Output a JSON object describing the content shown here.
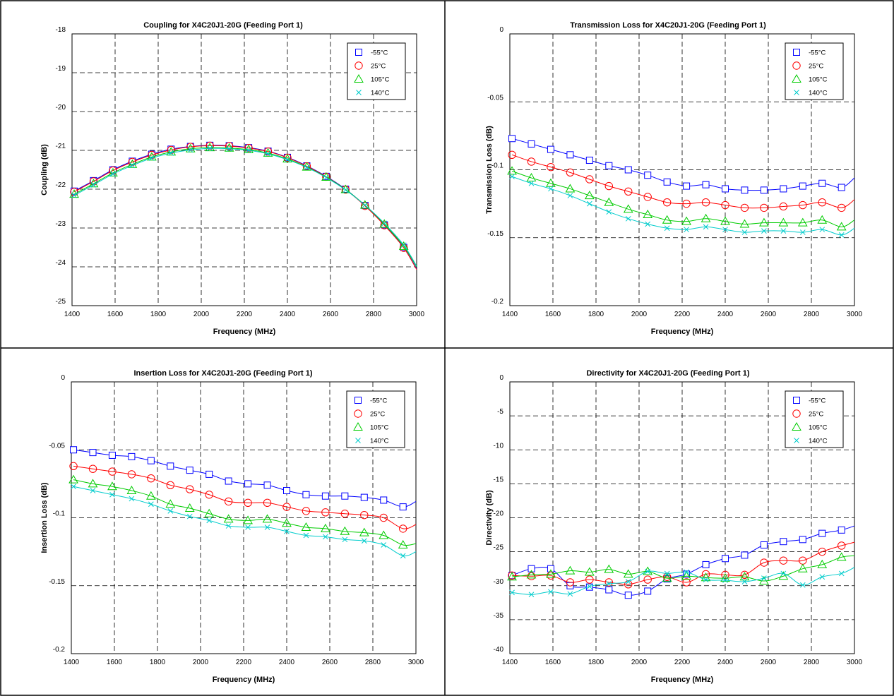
{
  "chart_data": [
    {
      "type": "line",
      "title": "Coupling for X4C20J1-20G (Feeding Port 1)",
      "xlabel": "Frequency (MHz)",
      "ylabel": "Coupling (dB)",
      "xlim": [
        1400,
        3000
      ],
      "ylim": [
        -25,
        -18
      ],
      "xticks": [
        1400,
        1600,
        1800,
        2000,
        2200,
        2400,
        2600,
        2800,
        3000
      ],
      "yticks": [
        -25,
        -24,
        -23,
        -22,
        -21,
        -20,
        -19,
        -18
      ],
      "grid": true,
      "legend_position": "top-right",
      "series": [
        {
          "name": "-55°C",
          "color": "#0000ff",
          "marker": "square",
          "x": [
            1410,
            1500,
            1590,
            1680,
            1770,
            1860,
            1950,
            2040,
            2130,
            2220,
            2310,
            2400,
            2490,
            2580,
            2670,
            2760,
            2850,
            2940,
            3000
          ],
          "y": [
            -22.05,
            -21.78,
            -21.5,
            -21.28,
            -21.1,
            -20.97,
            -20.9,
            -20.87,
            -20.88,
            -20.93,
            -21.02,
            -21.18,
            -21.4,
            -21.67,
            -22.0,
            -22.42,
            -22.92,
            -23.5,
            -24.05
          ]
        },
        {
          "name": "25°C",
          "color": "#ff0000",
          "marker": "circle",
          "x": [
            1410,
            1500,
            1590,
            1680,
            1770,
            1860,
            1950,
            2040,
            2130,
            2220,
            2310,
            2400,
            2490,
            2580,
            2670,
            2760,
            2850,
            2940,
            3000
          ],
          "y": [
            -22.07,
            -21.8,
            -21.52,
            -21.3,
            -21.12,
            -20.99,
            -20.91,
            -20.88,
            -20.89,
            -20.94,
            -21.03,
            -21.19,
            -21.41,
            -21.68,
            -22.01,
            -22.43,
            -22.93,
            -23.51,
            -24.07
          ]
        },
        {
          "name": "105°C",
          "color": "#00cc00",
          "marker": "triangle",
          "x": [
            1410,
            1500,
            1590,
            1680,
            1770,
            1860,
            1950,
            2040,
            2130,
            2220,
            2310,
            2400,
            2490,
            2580,
            2670,
            2760,
            2850,
            2940,
            3000
          ],
          "y": [
            -22.13,
            -21.86,
            -21.58,
            -21.36,
            -21.17,
            -21.04,
            -20.96,
            -20.93,
            -20.94,
            -20.98,
            -21.07,
            -21.22,
            -21.43,
            -21.69,
            -22.01,
            -22.41,
            -22.9,
            -23.47,
            -24.0
          ]
        },
        {
          "name": "140°C",
          "color": "#00cccc",
          "marker": "x",
          "x": [
            1410,
            1500,
            1590,
            1680,
            1770,
            1860,
            1950,
            2040,
            2130,
            2220,
            2310,
            2400,
            2490,
            2580,
            2670,
            2760,
            2850,
            2940,
            3000
          ],
          "y": [
            -22.16,
            -21.89,
            -21.61,
            -21.39,
            -21.2,
            -21.07,
            -20.99,
            -20.95,
            -20.96,
            -21.0,
            -21.09,
            -21.24,
            -21.44,
            -21.7,
            -22.02,
            -22.41,
            -22.88,
            -23.44,
            -23.98
          ]
        }
      ]
    },
    {
      "type": "line",
      "title": "Transmission Loss for X4C20J1-20G (Feeding Port 1)",
      "xlabel": "Frequency (MHz)",
      "ylabel": "Transmission Loss (dB)",
      "xlim": [
        1400,
        3000
      ],
      "ylim": [
        -0.2,
        0
      ],
      "xticks": [
        1400,
        1600,
        1800,
        2000,
        2200,
        2400,
        2600,
        2800,
        3000
      ],
      "yticks": [
        -0.2,
        -0.15,
        -0.1,
        -0.05,
        0
      ],
      "grid": true,
      "legend_position": "top-right",
      "series": [
        {
          "name": "-55°C",
          "color": "#0000ff",
          "marker": "square",
          "x": [
            1410,
            1500,
            1590,
            1680,
            1770,
            1860,
            1950,
            2040,
            2130,
            2220,
            2310,
            2400,
            2490,
            2580,
            2670,
            2760,
            2850,
            2940,
            3000
          ],
          "y": [
            -0.077,
            -0.081,
            -0.085,
            -0.089,
            -0.093,
            -0.097,
            -0.1,
            -0.104,
            -0.109,
            -0.112,
            -0.111,
            -0.114,
            -0.115,
            -0.115,
            -0.114,
            -0.112,
            -0.11,
            -0.113,
            -0.106
          ]
        },
        {
          "name": "25°C",
          "color": "#ff0000",
          "marker": "circle",
          "x": [
            1410,
            1500,
            1590,
            1680,
            1770,
            1860,
            1950,
            2040,
            2130,
            2220,
            2310,
            2400,
            2490,
            2580,
            2670,
            2760,
            2850,
            2940,
            3000
          ],
          "y": [
            -0.089,
            -0.094,
            -0.098,
            -0.102,
            -0.107,
            -0.112,
            -0.116,
            -0.12,
            -0.124,
            -0.125,
            -0.124,
            -0.126,
            -0.128,
            -0.128,
            -0.127,
            -0.126,
            -0.124,
            -0.128,
            -0.122
          ]
        },
        {
          "name": "105°C",
          "color": "#00cc00",
          "marker": "triangle",
          "x": [
            1410,
            1500,
            1590,
            1680,
            1770,
            1860,
            1950,
            2040,
            2130,
            2220,
            2310,
            2400,
            2490,
            2580,
            2670,
            2760,
            2850,
            2940,
            3000
          ],
          "y": [
            -0.101,
            -0.106,
            -0.11,
            -0.114,
            -0.119,
            -0.124,
            -0.129,
            -0.133,
            -0.137,
            -0.138,
            -0.136,
            -0.138,
            -0.14,
            -0.139,
            -0.139,
            -0.139,
            -0.137,
            -0.142,
            -0.137
          ]
        },
        {
          "name": "140°C",
          "color": "#00cccc",
          "marker": "x",
          "x": [
            1410,
            1500,
            1590,
            1680,
            1770,
            1860,
            1950,
            2040,
            2130,
            2220,
            2310,
            2400,
            2490,
            2580,
            2670,
            2760,
            2850,
            2940,
            3000
          ],
          "y": [
            -0.105,
            -0.11,
            -0.114,
            -0.119,
            -0.125,
            -0.131,
            -0.136,
            -0.14,
            -0.143,
            -0.144,
            -0.142,
            -0.144,
            -0.146,
            -0.145,
            -0.145,
            -0.146,
            -0.144,
            -0.148,
            -0.143
          ]
        }
      ]
    },
    {
      "type": "line",
      "title": "Insertion Loss for X4C20J1-20G (Feeding Port 1)",
      "xlabel": "Frequency (MHz)",
      "ylabel": "Insertion Loss (dB)",
      "xlim": [
        1400,
        3000
      ],
      "ylim": [
        -0.2,
        0
      ],
      "xticks": [
        1400,
        1600,
        1800,
        2000,
        2200,
        2400,
        2600,
        2800,
        3000
      ],
      "yticks": [
        -0.2,
        -0.15,
        -0.1,
        -0.05,
        0
      ],
      "grid": true,
      "legend_position": "top-right",
      "series": [
        {
          "name": "-55°C",
          "color": "#0000ff",
          "marker": "square",
          "x": [
            1410,
            1500,
            1590,
            1680,
            1770,
            1860,
            1950,
            2040,
            2130,
            2220,
            2310,
            2400,
            2490,
            2580,
            2670,
            2760,
            2850,
            2940,
            3000
          ],
          "y": [
            -0.05,
            -0.052,
            -0.054,
            -0.055,
            -0.058,
            -0.062,
            -0.065,
            -0.068,
            -0.073,
            -0.075,
            -0.076,
            -0.08,
            -0.083,
            -0.084,
            -0.084,
            -0.085,
            -0.087,
            -0.092,
            -0.088
          ]
        },
        {
          "name": "25°C",
          "color": "#ff0000",
          "marker": "circle",
          "x": [
            1410,
            1500,
            1590,
            1680,
            1770,
            1860,
            1950,
            2040,
            2130,
            2220,
            2310,
            2400,
            2490,
            2580,
            2670,
            2760,
            2850,
            2940,
            3000
          ],
          "y": [
            -0.062,
            -0.064,
            -0.066,
            -0.068,
            -0.071,
            -0.076,
            -0.079,
            -0.083,
            -0.088,
            -0.089,
            -0.089,
            -0.092,
            -0.095,
            -0.096,
            -0.097,
            -0.098,
            -0.1,
            -0.108,
            -0.105
          ]
        },
        {
          "name": "105°C",
          "color": "#00cc00",
          "marker": "triangle",
          "x": [
            1410,
            1500,
            1590,
            1680,
            1770,
            1860,
            1950,
            2040,
            2130,
            2220,
            2310,
            2400,
            2490,
            2580,
            2670,
            2760,
            2850,
            2940,
            3000
          ],
          "y": [
            -0.072,
            -0.075,
            -0.077,
            -0.08,
            -0.084,
            -0.09,
            -0.093,
            -0.097,
            -0.101,
            -0.102,
            -0.101,
            -0.104,
            -0.107,
            -0.108,
            -0.11,
            -0.111,
            -0.113,
            -0.12,
            -0.119
          ]
        },
        {
          "name": "140°C",
          "color": "#00cccc",
          "marker": "x",
          "x": [
            1410,
            1500,
            1590,
            1680,
            1770,
            1860,
            1950,
            2040,
            2130,
            2220,
            2310,
            2400,
            2490,
            2580,
            2670,
            2760,
            2850,
            2940,
            3000
          ],
          "y": [
            -0.077,
            -0.08,
            -0.083,
            -0.086,
            -0.09,
            -0.095,
            -0.099,
            -0.102,
            -0.106,
            -0.107,
            -0.107,
            -0.11,
            -0.113,
            -0.114,
            -0.116,
            -0.117,
            -0.12,
            -0.128,
            -0.125
          ]
        }
      ]
    },
    {
      "type": "line",
      "title": "Directivity for X4C20J1-20G (Feeding Port 1)",
      "xlabel": "Frequency (MHz)",
      "ylabel": "Directivity (dB)",
      "xlim": [
        1400,
        3000
      ],
      "ylim": [
        -40,
        0
      ],
      "xticks": [
        1400,
        1600,
        1800,
        2000,
        2200,
        2400,
        2600,
        2800,
        3000
      ],
      "yticks": [
        -40,
        -35,
        -30,
        -25,
        -20,
        -15,
        -10,
        -5,
        0
      ],
      "grid": true,
      "legend_position": "top-right",
      "series": [
        {
          "name": "-55°C",
          "color": "#0000ff",
          "marker": "square",
          "x": [
            1410,
            1500,
            1590,
            1680,
            1770,
            1860,
            1950,
            2040,
            2130,
            2220,
            2310,
            2400,
            2490,
            2580,
            2670,
            2760,
            2850,
            2940,
            3000
          ],
          "y": [
            -28.5,
            -27.5,
            -27.5,
            -30.0,
            -30.2,
            -30.6,
            -31.4,
            -30.8,
            -29.0,
            -28.3,
            -26.9,
            -26.0,
            -25.5,
            -24.0,
            -23.5,
            -23.2,
            -22.3,
            -21.8,
            -21.2
          ]
        },
        {
          "name": "25°C",
          "color": "#ff0000",
          "marker": "circle",
          "x": [
            1410,
            1500,
            1590,
            1680,
            1770,
            1860,
            1950,
            2040,
            2130,
            2220,
            2310,
            2400,
            2490,
            2580,
            2670,
            2760,
            2850,
            2940,
            3000
          ],
          "y": [
            -28.5,
            -28.6,
            -28.5,
            -29.5,
            -29.1,
            -29.5,
            -29.8,
            -29.1,
            -28.7,
            -29.5,
            -28.3,
            -28.4,
            -28.4,
            -26.6,
            -26.3,
            -26.3,
            -25.0,
            -24.1,
            -23.6
          ]
        },
        {
          "name": "105°C",
          "color": "#00cc00",
          "marker": "triangle",
          "x": [
            1410,
            1500,
            1590,
            1680,
            1770,
            1860,
            1950,
            2040,
            2130,
            2220,
            2310,
            2400,
            2490,
            2580,
            2670,
            2760,
            2850,
            2940,
            3000
          ],
          "y": [
            -28.7,
            -28.4,
            -28.3,
            -27.8,
            -28.0,
            -27.6,
            -28.3,
            -27.9,
            -28.9,
            -28.6,
            -28.8,
            -28.9,
            -28.7,
            -29.3,
            -28.6,
            -27.5,
            -26.9,
            -25.8,
            -25.6
          ]
        },
        {
          "name": "140°C",
          "color": "#00cccc",
          "marker": "x",
          "x": [
            1410,
            1500,
            1590,
            1680,
            1770,
            1860,
            1950,
            2040,
            2130,
            2220,
            2310,
            2400,
            2490,
            2580,
            2670,
            2760,
            2850,
            2940,
            3000
          ],
          "y": [
            -31.0,
            -31.3,
            -30.9,
            -31.2,
            -30.1,
            -29.7,
            -29.4,
            -27.9,
            -28.2,
            -28.0,
            -29.1,
            -29.2,
            -29.4,
            -28.9,
            -28.2,
            -29.9,
            -28.7,
            -28.2,
            -27.3
          ]
        }
      ]
    }
  ]
}
